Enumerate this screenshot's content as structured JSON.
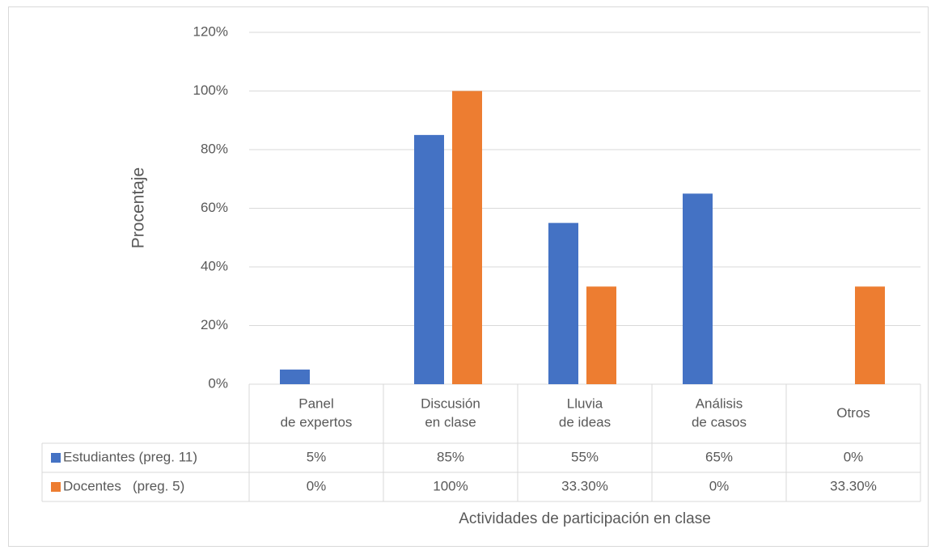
{
  "chart_data": {
    "type": "bar",
    "y_label": "Procentaje",
    "x_label": "Actividades de participación en clase",
    "categories": [
      "Panel de expertos",
      "Discusión en clase",
      "Lluvia de ideas",
      "Análisis de casos",
      "Otros"
    ],
    "series": [
      {
        "name": "Estudiantes (preg. 11)",
        "color": "#4472c4",
        "values": [
          5,
          85,
          55,
          65,
          0
        ],
        "value_labels": [
          "5%",
          "85%",
          "55%",
          "65%",
          "0%"
        ]
      },
      {
        "name": "Docentes   (preg. 5)",
        "color": "#ed7d31",
        "values": [
          0,
          100,
          33.3,
          0,
          33.3
        ],
        "value_labels": [
          "0%",
          "100%",
          "33.30%",
          "0%",
          "33.30%"
        ]
      }
    ],
    "ylim": [
      0,
      120
    ],
    "yticks": [
      {
        "value": 0,
        "label": "0%"
      },
      {
        "value": 20,
        "label": "20%"
      },
      {
        "value": 40,
        "label": "40%"
      },
      {
        "value": 60,
        "label": "60%"
      },
      {
        "value": 80,
        "label": "80%"
      },
      {
        "value": 100,
        "label": "100%"
      },
      {
        "value": 120,
        "label": "120%"
      }
    ],
    "grid": true
  }
}
